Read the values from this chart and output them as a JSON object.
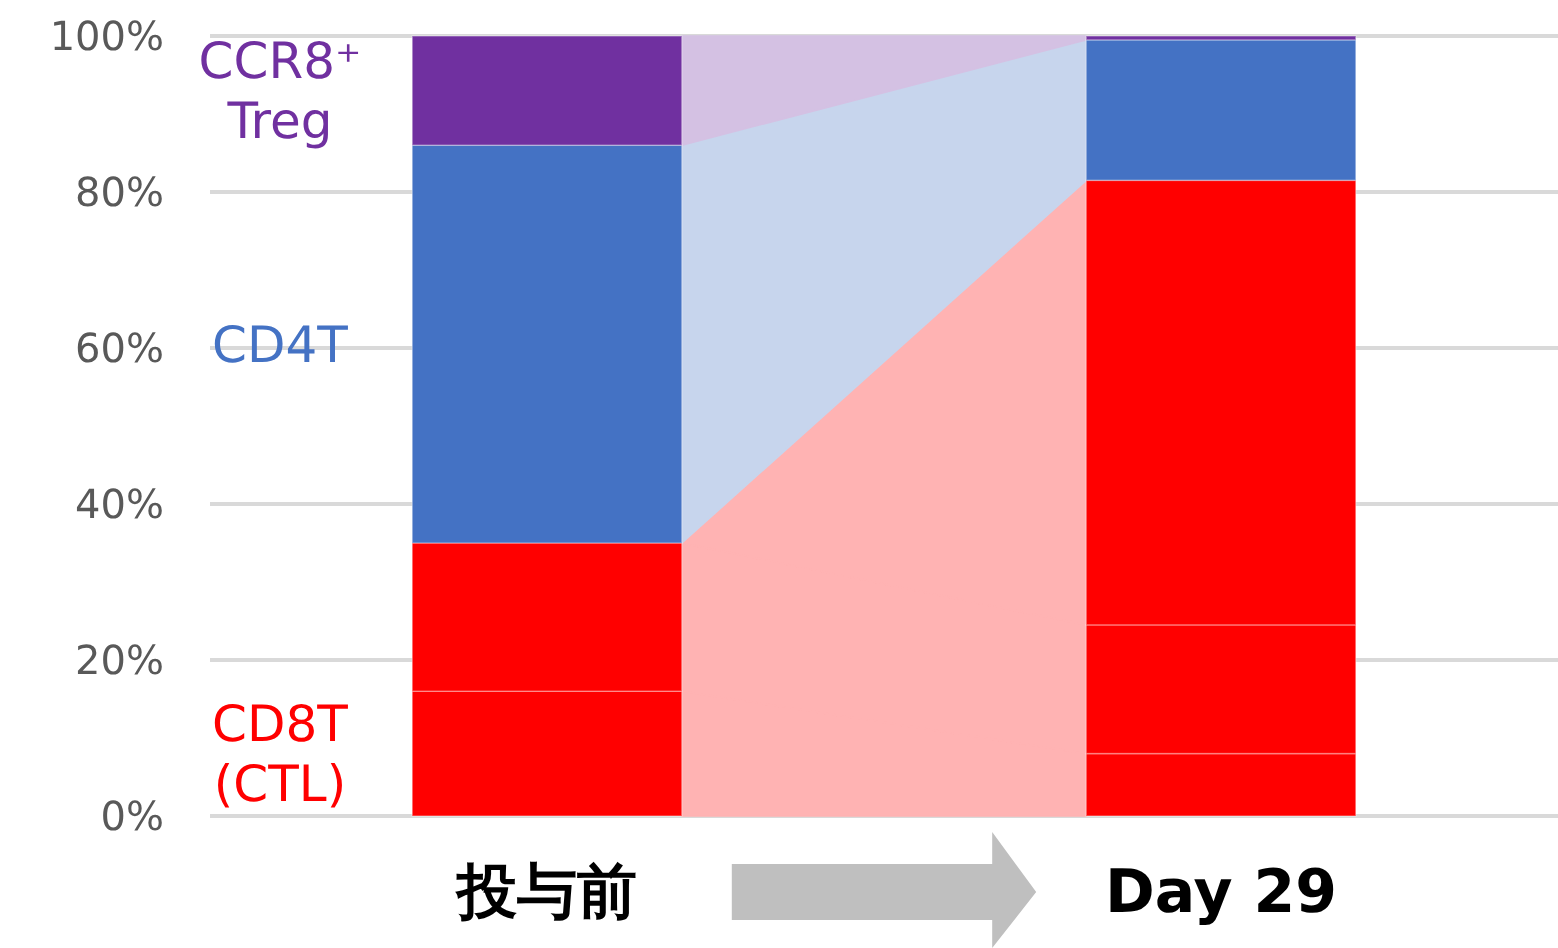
{
  "chart_data": {
    "type": "bar",
    "stacked": true,
    "categories": [
      "投与前",
      "Day 29"
    ],
    "series": [
      {
        "name": "CD8T (CTL)",
        "color": "#ff0000",
        "values": [
          16,
          8
        ]
      },
      {
        "color": "#ff0000",
        "values": [
          19,
          16.5
        ]
      },
      {
        "color": "#ff0000",
        "values": [
          0,
          57
        ]
      },
      {
        "name": "CD4T",
        "color": "#4472c4",
        "values": [
          51,
          18
        ]
      },
      {
        "name": "CCR8⁺ Treg",
        "color": "#7030a0",
        "values": [
          14,
          0.5
        ]
      }
    ],
    "ylim": [
      0,
      100
    ],
    "yticks": [
      {
        "value": 0,
        "label": "0%"
      },
      {
        "value": 20,
        "label": "20%"
      },
      {
        "value": 40,
        "label": "40%"
      },
      {
        "value": 60,
        "label": "60%"
      },
      {
        "value": 80,
        "label": "80%"
      },
      {
        "value": 100,
        "label": "100%"
      }
    ],
    "grid": "y"
  }
}
